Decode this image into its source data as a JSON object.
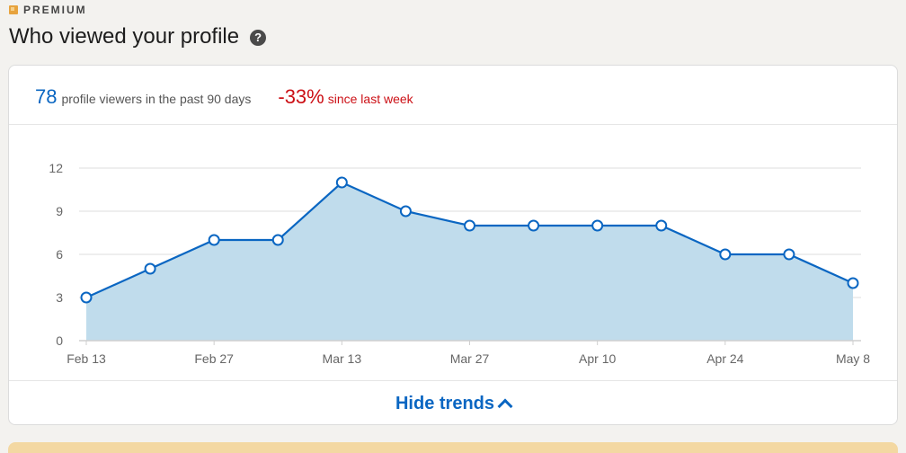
{
  "header": {
    "premium_label": "PREMIUM",
    "title": "Who viewed your profile",
    "help_icon": "question-circle-icon"
  },
  "summary": {
    "viewer_count": "78",
    "viewer_desc": "profile viewers in the past 90 days",
    "change_value": "-33%",
    "change_desc": "since last week"
  },
  "colors": {
    "accent": "#0a66c2",
    "negative": "#cc1016",
    "area_fill": "#c0dcec",
    "premium_gold": "#e7a33e"
  },
  "chart_data": {
    "type": "area",
    "x": [
      "Feb 13",
      "Feb 20",
      "Feb 27",
      "Mar 6",
      "Mar 13",
      "Mar 20",
      "Mar 27",
      "Apr 3",
      "Apr 10",
      "Apr 17",
      "Apr 24",
      "May 1",
      "May 8"
    ],
    "x_tick_labels": [
      "Feb 13",
      "Feb 27",
      "Mar 13",
      "Mar 27",
      "Apr 10",
      "Apr 24",
      "May 8"
    ],
    "values": [
      3,
      5,
      7,
      7,
      11,
      9,
      8,
      8,
      8,
      8,
      6,
      6,
      4
    ],
    "y_ticks": [
      0,
      3,
      6,
      9,
      12
    ],
    "ylim": [
      0,
      12
    ],
    "grid": true
  },
  "footer": {
    "hide_trends_label": "Hide trends",
    "chevron_icon": "chevron-up-icon"
  }
}
